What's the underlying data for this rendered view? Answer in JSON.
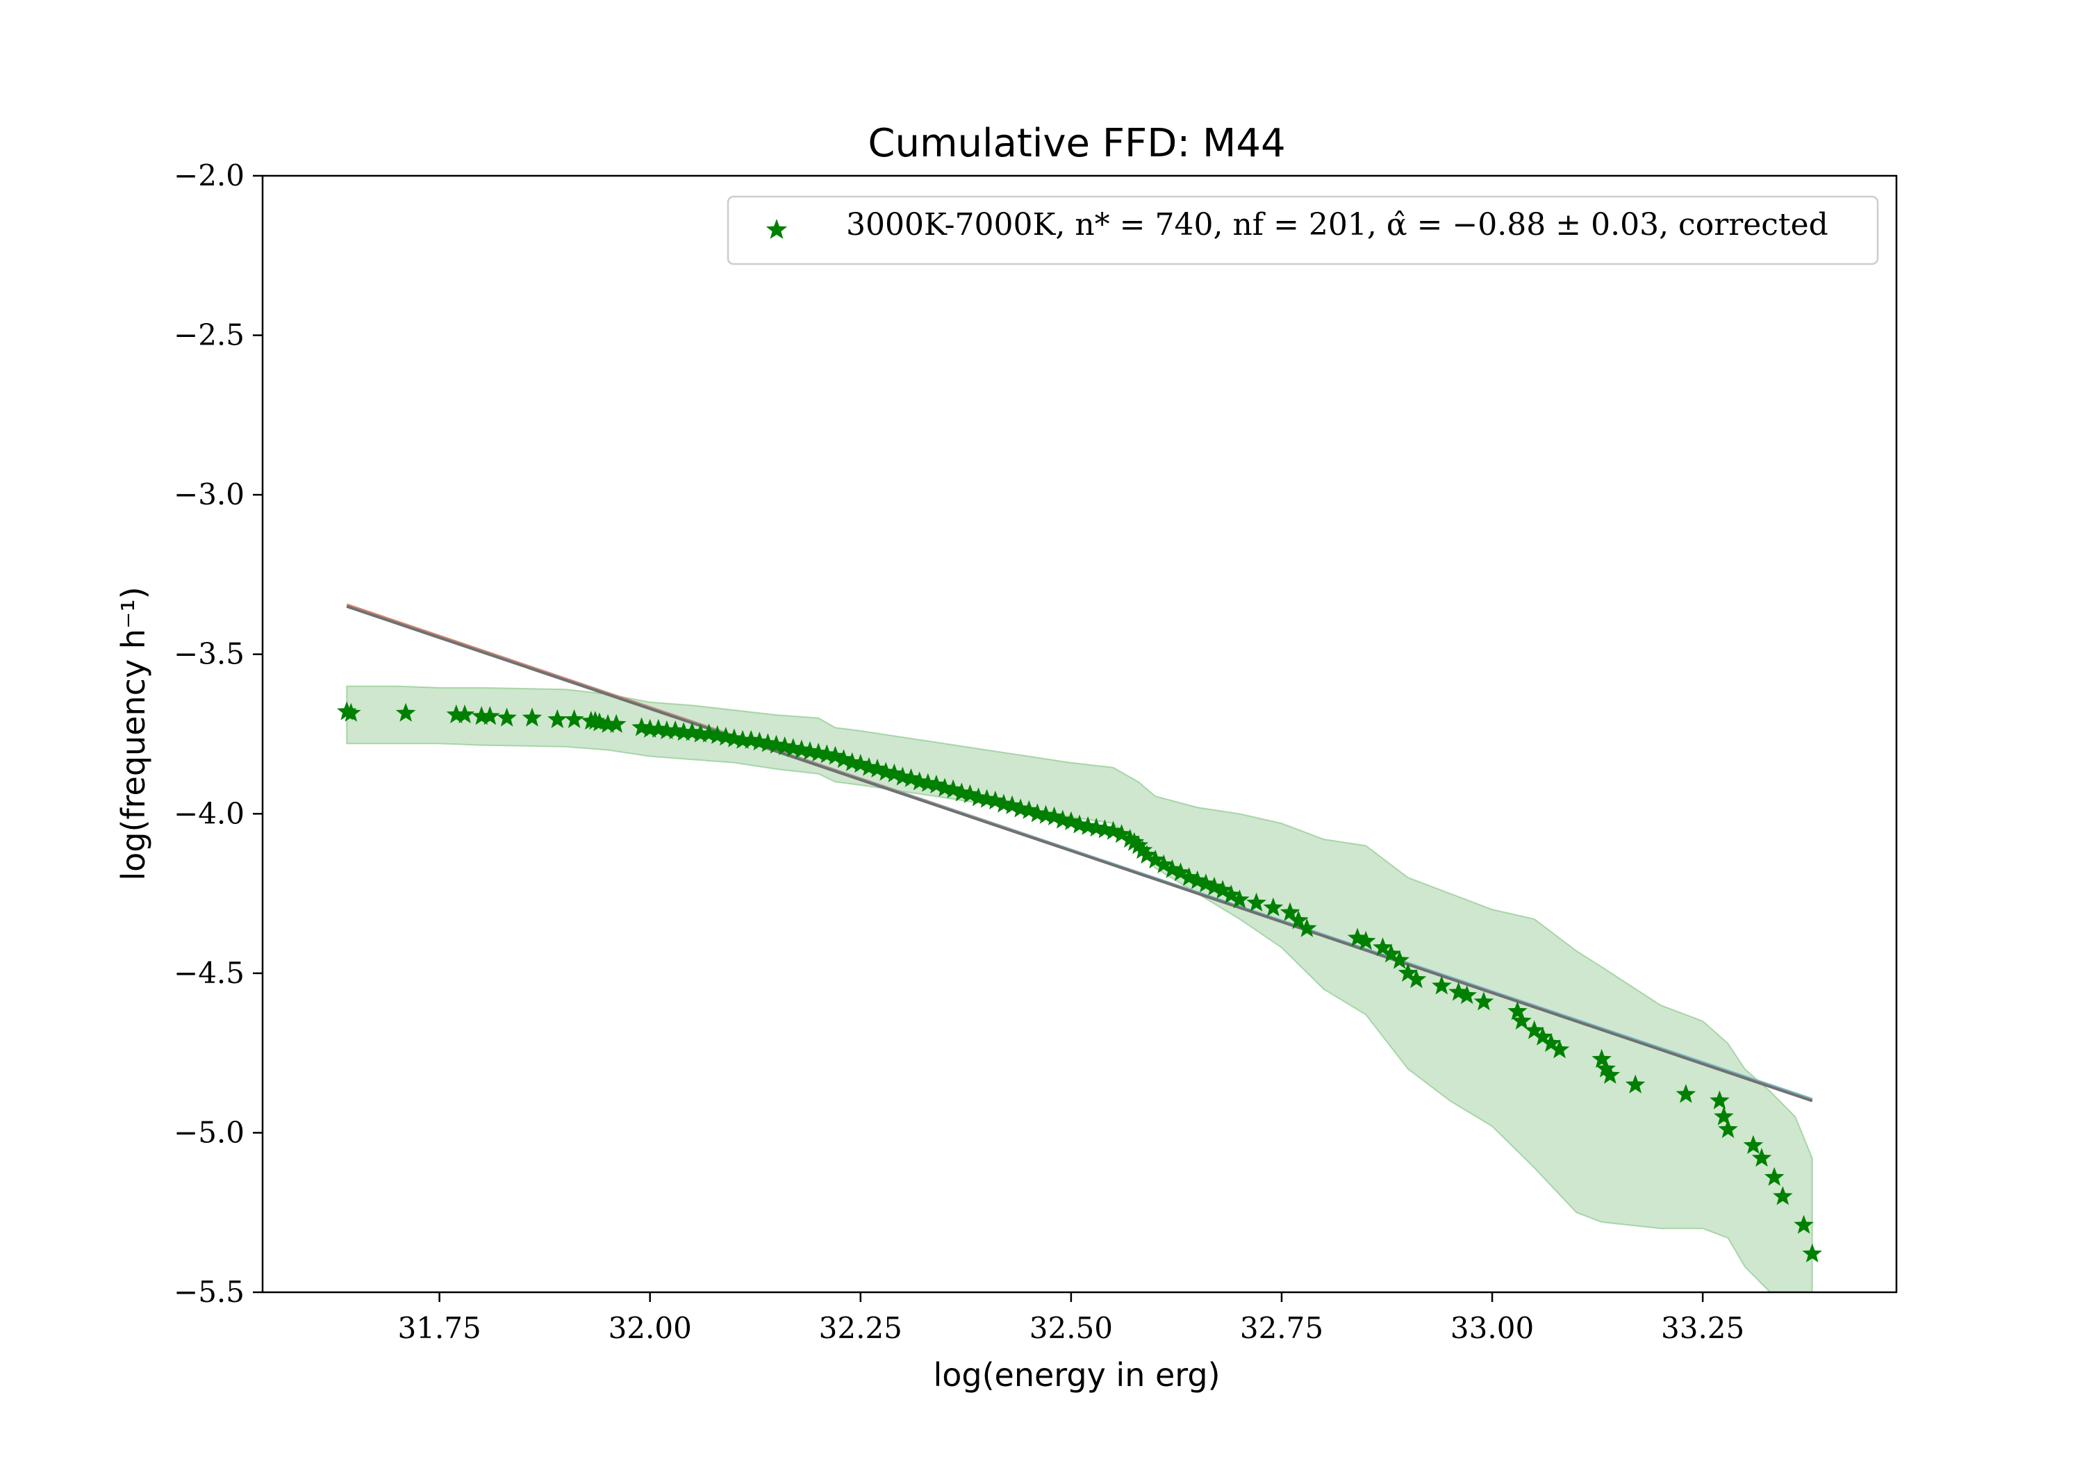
{
  "chart_data": {
    "type": "scatter",
    "title": "Cumulative FFD: M44",
    "xlabel": "log(energy in erg)",
    "ylabel": "log(frequency h⁻¹)",
    "xlim": [
      31.54,
      33.48
    ],
    "ylim": [
      -5.5,
      -2.0
    ],
    "x_ticks": [
      31.75,
      32.0,
      32.25,
      32.5,
      32.75,
      33.0,
      33.25
    ],
    "x_tick_labels": [
      "31.75",
      "32.00",
      "32.25",
      "32.50",
      "32.75",
      "33.00",
      "33.25"
    ],
    "y_ticks": [
      -2.0,
      -2.5,
      -3.0,
      -3.5,
      -4.0,
      -4.5,
      -5.0,
      -5.5
    ],
    "y_tick_labels": [
      "−2.0",
      "−2.5",
      "−3.0",
      "−3.5",
      "−4.0",
      "−4.5",
      "−5.0",
      "−5.5"
    ],
    "grid": false,
    "legend_position": "upper-right",
    "series": [
      {
        "name": "3000K-7000K, n* = 740, nf = 201, α̂ = −0.88 ± 0.03, corrected",
        "marker": "star",
        "color": "#008000",
        "x": [
          31.64,
          31.645,
          31.71,
          31.77,
          31.78,
          31.8,
          31.81,
          31.83,
          31.86,
          31.89,
          31.91,
          31.93,
          31.935,
          31.94,
          31.95,
          31.96,
          31.99,
          32.0,
          32.01,
          32.02,
          32.03,
          32.04,
          32.05,
          32.06,
          32.07,
          32.08,
          32.09,
          32.1,
          32.11,
          32.12,
          32.13,
          32.14,
          32.15,
          32.16,
          32.17,
          32.18,
          32.19,
          32.2,
          32.21,
          32.22,
          32.23,
          32.24,
          32.25,
          32.26,
          32.27,
          32.28,
          32.29,
          32.3,
          32.31,
          32.32,
          32.33,
          32.34,
          32.35,
          32.36,
          32.37,
          32.38,
          32.39,
          32.4,
          32.41,
          32.42,
          32.43,
          32.44,
          32.45,
          32.46,
          32.47,
          32.48,
          32.49,
          32.5,
          32.51,
          32.52,
          32.53,
          32.54,
          32.55,
          32.56,
          32.57,
          32.575,
          32.58,
          32.585,
          32.59,
          32.6,
          32.61,
          32.62,
          32.63,
          32.64,
          32.65,
          32.66,
          32.67,
          32.68,
          32.69,
          32.7,
          32.72,
          32.74,
          32.76,
          32.77,
          32.78,
          32.84,
          32.85,
          32.87,
          32.88,
          32.89,
          32.9,
          32.91,
          32.94,
          32.96,
          32.97,
          32.99,
          33.03,
          33.035,
          33.05,
          33.06,
          33.07,
          33.08,
          33.13,
          33.135,
          33.14,
          33.17,
          33.23,
          33.27,
          33.275,
          33.28,
          33.31,
          33.32,
          33.335,
          33.345,
          33.37,
          33.38
        ],
        "y": [
          -3.68,
          -3.685,
          -3.685,
          -3.69,
          -3.69,
          -3.695,
          -3.695,
          -3.7,
          -3.7,
          -3.705,
          -3.705,
          -3.71,
          -3.71,
          -3.715,
          -3.72,
          -3.72,
          -3.73,
          -3.735,
          -3.735,
          -3.74,
          -3.74,
          -3.745,
          -3.745,
          -3.75,
          -3.75,
          -3.755,
          -3.76,
          -3.765,
          -3.77,
          -3.77,
          -3.775,
          -3.78,
          -3.785,
          -3.79,
          -3.795,
          -3.8,
          -3.805,
          -3.81,
          -3.815,
          -3.82,
          -3.83,
          -3.84,
          -3.845,
          -3.855,
          -3.86,
          -3.87,
          -3.875,
          -3.885,
          -3.89,
          -3.9,
          -3.905,
          -3.91,
          -3.92,
          -3.925,
          -3.935,
          -3.94,
          -3.95,
          -3.955,
          -3.96,
          -3.97,
          -3.975,
          -3.985,
          -3.99,
          -4.0,
          -4.005,
          -4.01,
          -4.02,
          -4.025,
          -4.035,
          -4.04,
          -4.045,
          -4.05,
          -4.055,
          -4.065,
          -4.08,
          -4.09,
          -4.1,
          -4.115,
          -4.13,
          -4.145,
          -4.16,
          -4.175,
          -4.185,
          -4.2,
          -4.21,
          -4.22,
          -4.23,
          -4.24,
          -4.255,
          -4.27,
          -4.28,
          -4.295,
          -4.31,
          -4.335,
          -4.36,
          -4.39,
          -4.4,
          -4.42,
          -4.44,
          -4.46,
          -4.5,
          -4.52,
          -4.54,
          -4.56,
          -4.57,
          -4.59,
          -4.62,
          -4.65,
          -4.68,
          -4.7,
          -4.72,
          -4.74,
          -4.77,
          -4.8,
          -4.82,
          -4.85,
          -4.88,
          -4.9,
          -4.95,
          -4.99,
          -5.04,
          -5.08,
          -5.14,
          -5.2,
          -5.29,
          -5.38
        ]
      }
    ],
    "fit_lines": [
      {
        "x": [
          31.64,
          33.38
        ],
        "y": [
          -3.345,
          -4.9
        ],
        "color": "#d6826a"
      },
      {
        "x": [
          31.64,
          33.38
        ],
        "y": [
          -3.35,
          -4.895
        ],
        "color": "#7bb5c4"
      },
      {
        "x": [
          31.64,
          33.38
        ],
        "y": [
          -3.35,
          -4.9
        ],
        "color": "#707070"
      }
    ],
    "uncertainty_band": {
      "color": "#3da13d",
      "opacity": 0.25,
      "x": [
        31.64,
        31.7,
        31.75,
        31.8,
        31.9,
        31.95,
        32.0,
        32.05,
        32.1,
        32.15,
        32.2,
        32.22,
        32.25,
        32.3,
        32.35,
        32.4,
        32.45,
        32.5,
        32.55,
        32.58,
        32.6,
        32.65,
        32.7,
        32.75,
        32.8,
        32.85,
        32.9,
        32.95,
        33.0,
        33.05,
        33.1,
        33.13,
        33.2,
        33.25,
        33.28,
        33.3,
        33.33,
        33.36,
        33.38
      ],
      "y_upper": [
        -3.6,
        -3.6,
        -3.605,
        -3.605,
        -3.61,
        -3.625,
        -3.65,
        -3.66,
        -3.675,
        -3.69,
        -3.7,
        -3.73,
        -3.74,
        -3.76,
        -3.78,
        -3.8,
        -3.82,
        -3.84,
        -3.855,
        -3.9,
        -3.945,
        -3.98,
        -4.0,
        -4.03,
        -4.08,
        -4.1,
        -4.2,
        -4.25,
        -4.3,
        -4.33,
        -4.43,
        -4.48,
        -4.6,
        -4.65,
        -4.72,
        -4.8,
        -4.87,
        -4.95,
        -5.08
      ],
      "y_lower": [
        -3.78,
        -3.78,
        -3.78,
        -3.785,
        -3.79,
        -3.8,
        -3.82,
        -3.83,
        -3.84,
        -3.86,
        -3.875,
        -3.9,
        -3.91,
        -3.93,
        -3.95,
        -3.97,
        -3.99,
        -4.01,
        -4.03,
        -4.1,
        -4.17,
        -4.25,
        -4.33,
        -4.42,
        -4.55,
        -4.63,
        -4.8,
        -4.9,
        -4.98,
        -5.11,
        -5.25,
        -5.28,
        -5.3,
        -5.3,
        -5.33,
        -5.42,
        -5.5,
        -5.5,
        -5.5
      ]
    }
  }
}
